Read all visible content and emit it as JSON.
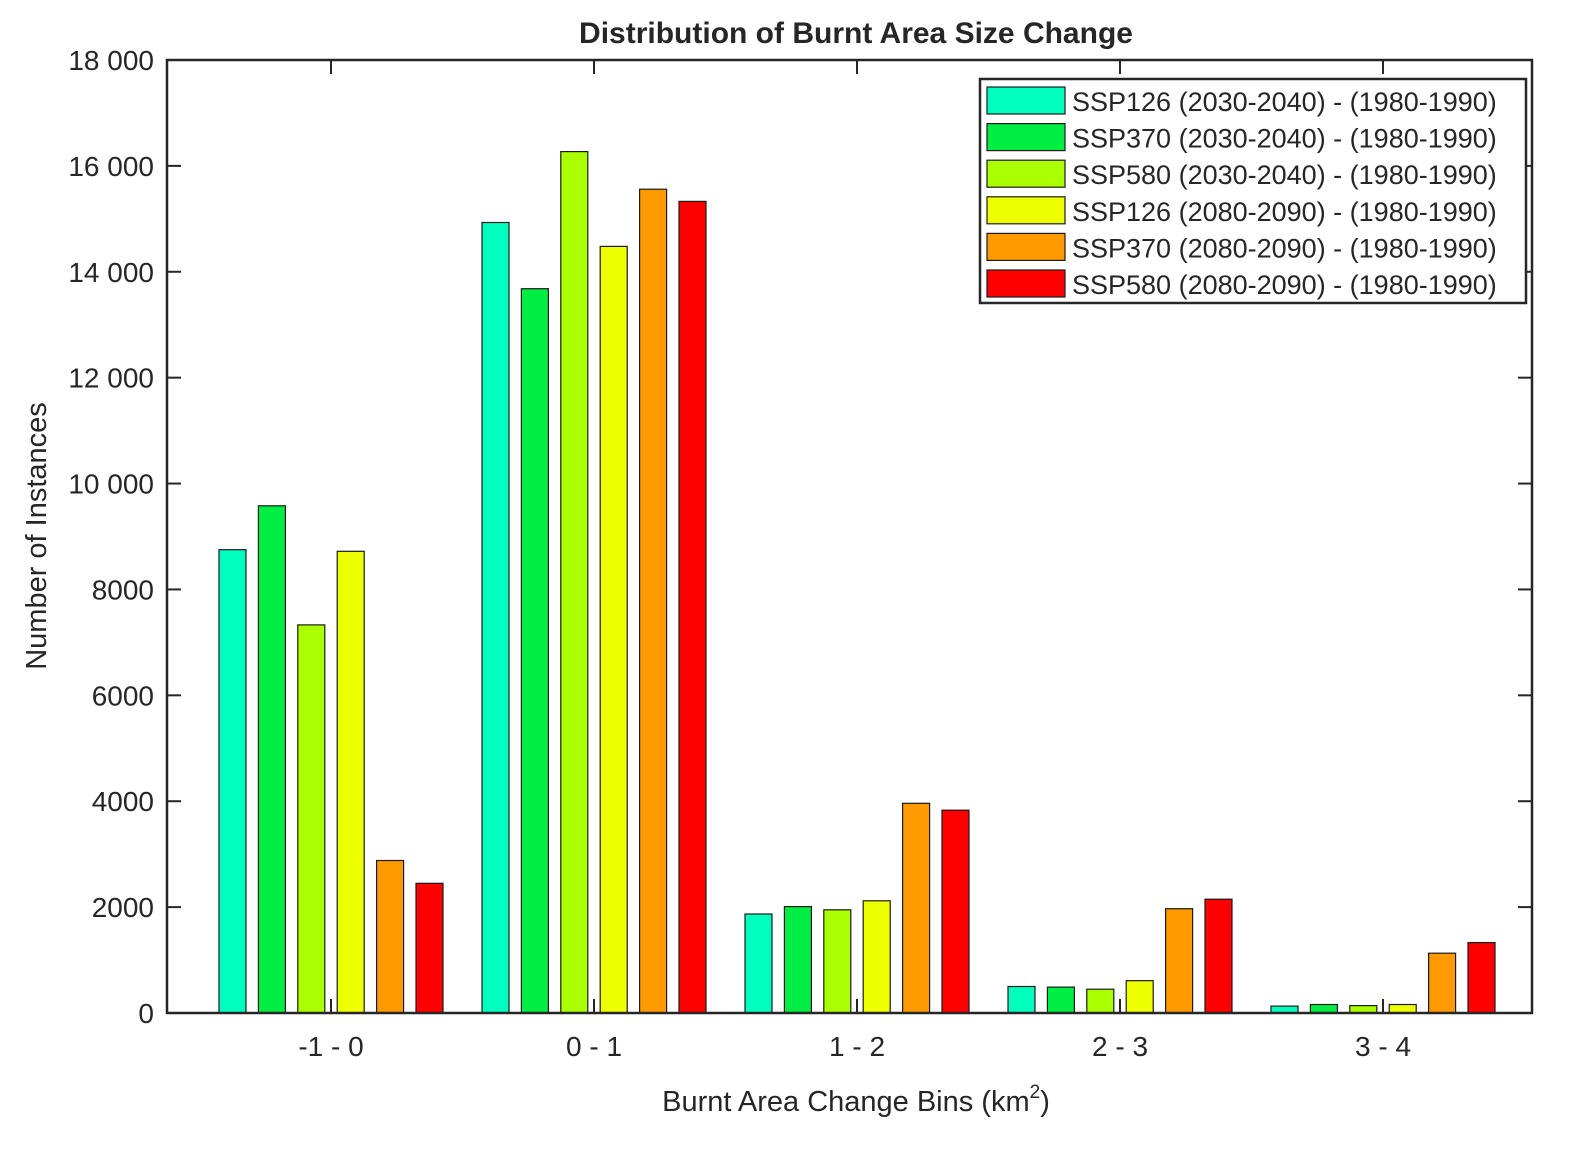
{
  "chart_data": {
    "type": "bar",
    "title": "Distribution of Burnt Area Size Change",
    "xlabel": "Burnt Area Change Bins (km",
    "xlabel_superscript": "2",
    "xlabel_suffix": ")",
    "ylabel": "Number of Instances",
    "ylim": [
      0,
      18000
    ],
    "yticks": [
      0,
      2000,
      4000,
      6000,
      8000,
      10000,
      12000,
      14000,
      16000,
      18000
    ],
    "ytick_labels": [
      "0",
      "2000",
      "4000",
      "6000",
      "8000",
      "10 000",
      "12 000",
      "14 000",
      "16 000",
      "18 000"
    ],
    "categories": [
      "-1 - 0",
      "0 - 1",
      "1 - 2",
      "2 - 3",
      "3 - 4"
    ],
    "series": [
      {
        "name": "SSP126 (2030-2040) - (1980-1990)",
        "color": "#00ffbf",
        "values": [
          8750,
          14930,
          1870,
          500,
          130
        ]
      },
      {
        "name": "SSP370 (2030-2040) - (1980-1990)",
        "color": "#00ee44",
        "values": [
          9580,
          13680,
          2010,
          490,
          160
        ]
      },
      {
        "name": "SSP580 (2030-2040) - (1980-1990)",
        "color": "#aaff00",
        "values": [
          7330,
          16270,
          1950,
          450,
          140
        ]
      },
      {
        "name": "SSP126 (2080-2090) - (1980-1990)",
        "color": "#eeff00",
        "values": [
          8720,
          14480,
          2120,
          610,
          160
        ]
      },
      {
        "name": "SSP370 (2080-2090) - (1980-1990)",
        "color": "#ff9900",
        "values": [
          2880,
          15560,
          3960,
          1970,
          1130
        ]
      },
      {
        "name": "SSP580 (2080-2090) - (1980-1990)",
        "color": "#ff0000",
        "values": [
          2450,
          15330,
          3830,
          2150,
          1330
        ]
      }
    ],
    "legend_position": "top-right",
    "grid": false
  }
}
